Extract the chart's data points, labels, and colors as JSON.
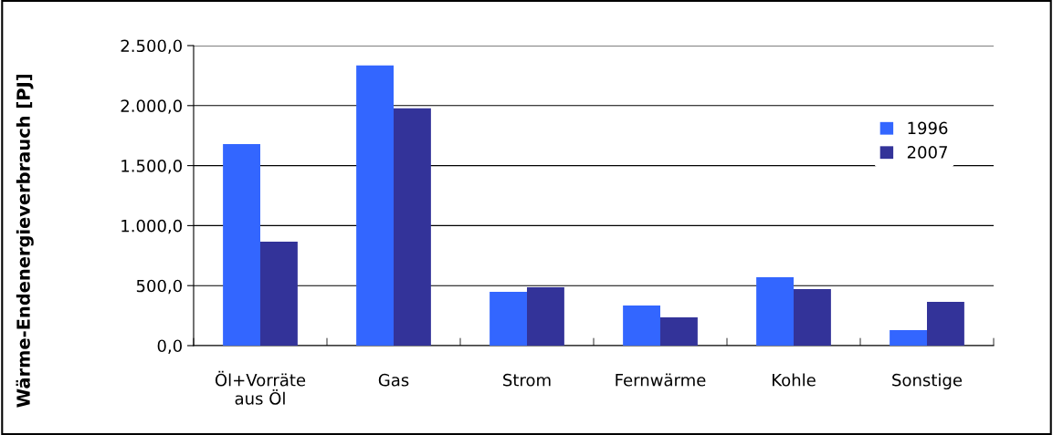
{
  "chart_data": {
    "type": "bar",
    "ylabel": "Wärme-Endenergieverbrauch [PJ]",
    "categories": [
      "Öl+Vorräte\naus Öl",
      "Gas",
      "Strom",
      "Fernwärme",
      "Kohle",
      "Sonstige"
    ],
    "series": [
      {
        "name": "1996",
        "color": "#3366ff",
        "values": [
          1680,
          2334,
          449,
          335,
          570,
          129
        ]
      },
      {
        "name": "2007",
        "color": "#333399",
        "values": [
          866,
          1977,
          487,
          236,
          471,
          365
        ]
      }
    ],
    "ylim": [
      0,
      2500
    ],
    "yticks": [
      {
        "value": 0,
        "label": "0,0"
      },
      {
        "value": 500,
        "label": "500,0"
      },
      {
        "value": 1000,
        "label": "1.000,0"
      },
      {
        "value": 1500,
        "label": "1.500,0"
      },
      {
        "value": 2000,
        "label": "2.000,0"
      },
      {
        "value": 2500,
        "label": "2.500,0"
      }
    ],
    "grid": "y",
    "legend": "right"
  }
}
